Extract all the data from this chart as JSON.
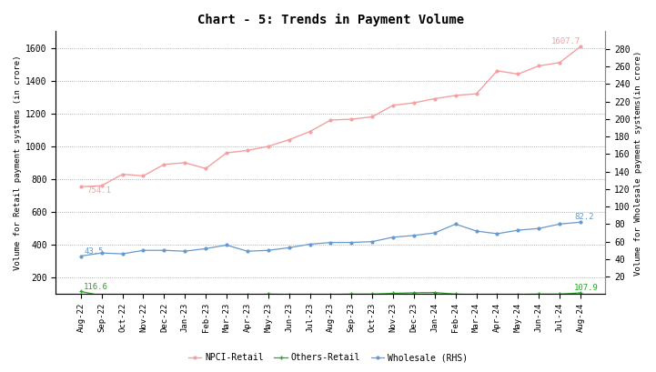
{
  "title": "Chart - 5: Trends in Payment Volume",
  "ylabel_left": "Volume for Retail payment systems (in crore)",
  "ylabel_right": "Volume for Wholesale payment systems(in crore)",
  "x_labels": [
    "Aug-22",
    "Sep-22",
    "Oct-22",
    "Nov-22",
    "Dec-22",
    "Jan-23",
    "Feb-23",
    "Mar-23",
    "Apr-23",
    "May-23",
    "Jun-23",
    "Jul-23",
    "Aug-23",
    "Sep-23",
    "Oct-23",
    "Nov-23",
    "Dec-23",
    "Jan-24",
    "Feb-24",
    "Mar-24",
    "Apr-24",
    "May-24",
    "Jun-24",
    "Jul-24",
    "Aug-24"
  ],
  "npci_retail": [
    754.1,
    760,
    830,
    820,
    890,
    900,
    865,
    960,
    975,
    1000,
    1040,
    1090,
    1160,
    1165,
    1180,
    1250,
    1265,
    1290,
    1310,
    1320,
    1460,
    1440,
    1490,
    1510,
    1607.7
  ],
  "others_retail": [
    116.6,
    90,
    85,
    90,
    88,
    88,
    90,
    92,
    95,
    100,
    98,
    98,
    98,
    100,
    100,
    105,
    108,
    110,
    100,
    97,
    98,
    98,
    100,
    100,
    107.9
  ],
  "wholesale_rhs": [
    43.5,
    47,
    46,
    50,
    50,
    49,
    52,
    56,
    49,
    50,
    53,
    57,
    59,
    59,
    60,
    65,
    67,
    70,
    80,
    72,
    69,
    73,
    75,
    80,
    82.2
  ],
  "npci_color": "#f4a0a0",
  "others_color": "#22aa22",
  "wholesale_color": "#6699cc",
  "npci_label": "NPCI-Retail",
  "others_label": "Others-Retail",
  "wholesale_label": "Wholesale (RHS)",
  "ylim_left": [
    100,
    1700
  ],
  "ylim_right": [
    0,
    300
  ],
  "yticks_left": [
    200,
    400,
    600,
    800,
    1000,
    1200,
    1400,
    1600
  ],
  "yticks_right": [
    20,
    40,
    60,
    80,
    100,
    120,
    140,
    160,
    180,
    200,
    220,
    240,
    260,
    280
  ],
  "annotation_npci_start": "754.1",
  "annotation_npci_end": "1607.7",
  "annotation_others_start": "116.6",
  "annotation_others_end": "107.9",
  "annotation_wholesale_start": "43.5",
  "annotation_wholesale_end": "82.2",
  "bg_color": "#ffffff",
  "grid_color": "#999999"
}
